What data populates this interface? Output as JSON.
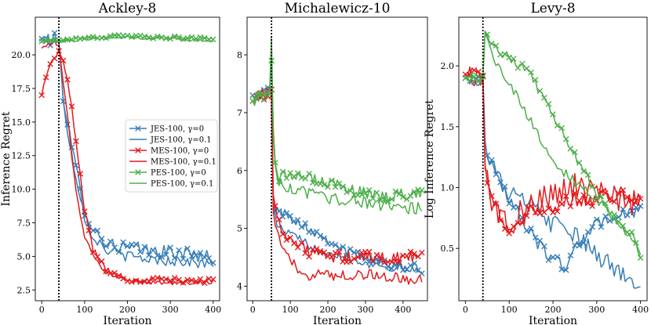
{
  "legend": [
    {
      "label": "JES-100, γ=0",
      "color": "#377eb8",
      "marker": "x"
    },
    {
      "label": "JES-100, γ=0.1",
      "color": "#377eb8",
      "marker": "none"
    },
    {
      "label": "MES-100, γ=0",
      "color": "#e41a1c",
      "marker": "x"
    },
    {
      "label": "MES-100, γ=0.1",
      "color": "#e41a1c",
      "marker": "none"
    },
    {
      "label": "PES-100, γ=0",
      "color": "#4daf4a",
      "marker": "x"
    },
    {
      "label": "PES-100, γ=0.1",
      "color": "#4daf4a",
      "marker": "none"
    }
  ],
  "chart_data": [
    {
      "type": "line",
      "title": "Ackley-8",
      "xlabel": "Iteration",
      "ylabel": "Inference Regret",
      "xlim": [
        -15,
        415
      ],
      "ylim": [
        1.7,
        22.8
      ],
      "xticks": [
        0,
        100,
        200,
        300,
        400
      ],
      "yticks": [
        2.5,
        5.0,
        7.5,
        10.0,
        12.5,
        15.0,
        17.5,
        20.0
      ],
      "ytick_labels": [
        "2.5",
        "5.0",
        "7.5",
        "10.0",
        "12.5",
        "15.0",
        "17.5",
        "20.0"
      ],
      "vline": 40,
      "x_end": 400,
      "has_legend": true,
      "series": [
        {
          "name": "JES-100, γ=0",
          "x": [
            0,
            40,
            50,
            60,
            70,
            80,
            90,
            100,
            120,
            150,
            200,
            250,
            300,
            350,
            400
          ],
          "values": [
            21.2,
            21.1,
            17.0,
            15.0,
            13.0,
            11.5,
            10.0,
            8.5,
            7.0,
            6.0,
            5.6,
            5.4,
            5.3,
            5.2,
            4.9
          ],
          "noise": 0.5
        },
        {
          "name": "JES-100, γ=0.1",
          "x": [
            0,
            40,
            50,
            60,
            70,
            80,
            90,
            100,
            120,
            150,
            200,
            250,
            300,
            350,
            400
          ],
          "values": [
            21.2,
            21.1,
            16.5,
            14.5,
            12.5,
            11.0,
            9.5,
            8.0,
            6.5,
            5.5,
            5.0,
            4.8,
            4.7,
            4.6,
            4.3
          ],
          "noise": 0.4
        },
        {
          "name": "MES-100, γ=0",
          "x": [
            0,
            10,
            20,
            30,
            40,
            50,
            60,
            70,
            80,
            90,
            100,
            120,
            150,
            200,
            300,
            400
          ],
          "values": [
            17.0,
            18.5,
            19.2,
            19.8,
            20.3,
            19.5,
            18.0,
            16.0,
            13.5,
            11.0,
            8.5,
            5.5,
            4.0,
            3.3,
            3.2,
            3.2
          ],
          "noise": 0.2
        },
        {
          "name": "MES-100, γ=0.1",
          "x": [
            0,
            20,
            30,
            40,
            50,
            60,
            70,
            80,
            90,
            100,
            120,
            150,
            200,
            300,
            400
          ],
          "values": [
            20.5,
            20.8,
            20.9,
            20.7,
            18.0,
            15.5,
            12.5,
            10.0,
            8.0,
            6.5,
            5.0,
            3.8,
            3.2,
            3.0,
            3.1
          ],
          "noise": 0.15
        },
        {
          "name": "PES-100, γ=0",
          "x": [
            0,
            40,
            100,
            200,
            300,
            400
          ],
          "values": [
            21.0,
            21.1,
            21.3,
            21.4,
            21.3,
            21.2
          ],
          "noise": 0.12
        },
        {
          "name": "PES-100, γ=0.1",
          "x": [
            0,
            40,
            100,
            200,
            300,
            400
          ],
          "values": [
            21.1,
            21.0,
            21.2,
            21.3,
            21.2,
            21.0
          ],
          "noise": 0.12
        }
      ]
    },
    {
      "type": "line",
      "title": "Michalewicz-10",
      "xlabel": "Iteration",
      "ylabel": "",
      "xlim": [
        -15,
        465
      ],
      "ylim": [
        3.75,
        8.65
      ],
      "xticks": [
        0,
        100,
        200,
        300,
        400
      ],
      "yticks": [
        4,
        5,
        6,
        7,
        8
      ],
      "ytick_labels": [
        "4",
        "5",
        "6",
        "7",
        "8"
      ],
      "vline": 50,
      "x_end": 450,
      "has_legend": false,
      "series": [
        {
          "name": "JES-100, γ=0",
          "x": [
            0,
            50,
            55,
            70,
            100,
            150,
            200,
            250,
            300,
            350,
            400,
            450
          ],
          "values": [
            7.3,
            7.4,
            5.4,
            5.3,
            5.2,
            5.0,
            4.8,
            4.6,
            4.5,
            4.4,
            4.35,
            4.3
          ],
          "noise": 0.08
        },
        {
          "name": "JES-100, γ=0.1",
          "x": [
            0,
            50,
            55,
            70,
            100,
            150,
            200,
            250,
            300,
            350,
            400,
            450
          ],
          "values": [
            7.3,
            7.3,
            5.3,
            5.0,
            4.9,
            4.7,
            4.6,
            4.5,
            4.4,
            4.35,
            4.3,
            4.25
          ],
          "noise": 0.08
        },
        {
          "name": "MES-100, γ=0",
          "x": [
            0,
            50,
            55,
            70,
            100,
            150,
            200,
            250,
            300,
            350,
            400,
            450
          ],
          "values": [
            7.2,
            7.4,
            5.5,
            5.1,
            4.8,
            4.6,
            4.5,
            4.5,
            4.5,
            4.5,
            4.5,
            4.5
          ],
          "noise": 0.1
        },
        {
          "name": "MES-100, γ=0.1",
          "x": [
            0,
            50,
            55,
            70,
            100,
            150,
            200,
            250,
            300,
            350,
            400,
            450
          ],
          "values": [
            7.3,
            7.3,
            5.2,
            4.8,
            4.4,
            4.2,
            4.2,
            4.2,
            4.2,
            4.2,
            4.1,
            4.1
          ],
          "noise": 0.1
        },
        {
          "name": "PES-100, γ=0",
          "x": [
            0,
            45,
            50,
            55,
            60,
            70,
            100,
            150,
            200,
            250,
            300,
            350,
            400,
            450
          ],
          "values": [
            7.2,
            7.4,
            7.9,
            6.8,
            6.2,
            5.9,
            5.9,
            5.85,
            5.8,
            5.7,
            5.6,
            5.55,
            5.6,
            5.6
          ],
          "noise": 0.1
        },
        {
          "name": "PES-100, γ=0.1",
          "x": [
            0,
            45,
            50,
            55,
            60,
            70,
            100,
            150,
            200,
            250,
            300,
            350,
            400,
            450
          ],
          "values": [
            7.3,
            7.3,
            8.3,
            6.6,
            6.0,
            5.8,
            5.7,
            5.6,
            5.5,
            5.5,
            5.45,
            5.4,
            5.35,
            5.35
          ],
          "noise": 0.1
        }
      ]
    },
    {
      "type": "line",
      "title": "Levy-8",
      "xlabel": "Iteration",
      "ylabel": "Log Inference Regret",
      "xlim": [
        -15,
        415
      ],
      "ylim": [
        0.07,
        2.4
      ],
      "xticks": [
        0,
        100,
        200,
        300,
        400
      ],
      "yticks": [
        0.5,
        1.0,
        1.5,
        2.0
      ],
      "ytick_labels": [
        "0.5",
        "1.0",
        "1.5",
        "2.0"
      ],
      "vline": 40,
      "x_end": 400,
      "has_legend": false,
      "series": [
        {
          "name": "JES-100, γ=0",
          "x": [
            0,
            40,
            45,
            60,
            80,
            100,
            130,
            160,
            200,
            230,
            260,
            300,
            350,
            400
          ],
          "values": [
            1.9,
            1.92,
            1.3,
            1.2,
            1.05,
            0.9,
            0.75,
            0.55,
            0.42,
            0.35,
            0.55,
            0.7,
            0.78,
            0.8
          ],
          "noise": 0.05
        },
        {
          "name": "JES-100, γ=0.1",
          "x": [
            0,
            40,
            45,
            60,
            80,
            100,
            150,
            200,
            250,
            300,
            350,
            400
          ],
          "values": [
            1.92,
            1.9,
            1.32,
            1.2,
            1.05,
            0.95,
            0.85,
            0.7,
            0.6,
            0.45,
            0.3,
            0.22
          ],
          "noise": 0.08
        },
        {
          "name": "MES-100, γ=0",
          "x": [
            0,
            40,
            45,
            60,
            80,
            100,
            150,
            200,
            250,
            300,
            350,
            400
          ],
          "values": [
            1.93,
            1.92,
            1.15,
            0.95,
            0.75,
            0.65,
            0.8,
            0.85,
            0.9,
            0.9,
            0.95,
            0.9
          ],
          "noise": 0.06
        },
        {
          "name": "MES-100, γ=0.1",
          "x": [
            0,
            40,
            45,
            60,
            80,
            100,
            150,
            200,
            250,
            300,
            350,
            400
          ],
          "values": [
            1.92,
            1.9,
            1.1,
            0.9,
            0.75,
            0.7,
            0.85,
            0.95,
            1.0,
            0.95,
            0.9,
            0.85
          ],
          "noise": 0.12
        },
        {
          "name": "PES-100, γ=0",
          "x": [
            0,
            40,
            45,
            60,
            100,
            150,
            200,
            250,
            300,
            350,
            380,
            400
          ],
          "values": [
            1.9,
            1.91,
            2.28,
            2.15,
            2.08,
            1.92,
            1.6,
            1.25,
            0.95,
            0.7,
            0.6,
            0.45
          ],
          "noise": 0.04
        },
        {
          "name": "PES-100, γ=0.1",
          "x": [
            0,
            40,
            45,
            60,
            100,
            150,
            200,
            250,
            300,
            350,
            380,
            400
          ],
          "values": [
            1.91,
            1.9,
            2.28,
            2.1,
            1.85,
            1.55,
            1.2,
            1.05,
            0.9,
            0.7,
            0.55,
            0.45
          ],
          "noise": 0.04
        }
      ]
    }
  ]
}
